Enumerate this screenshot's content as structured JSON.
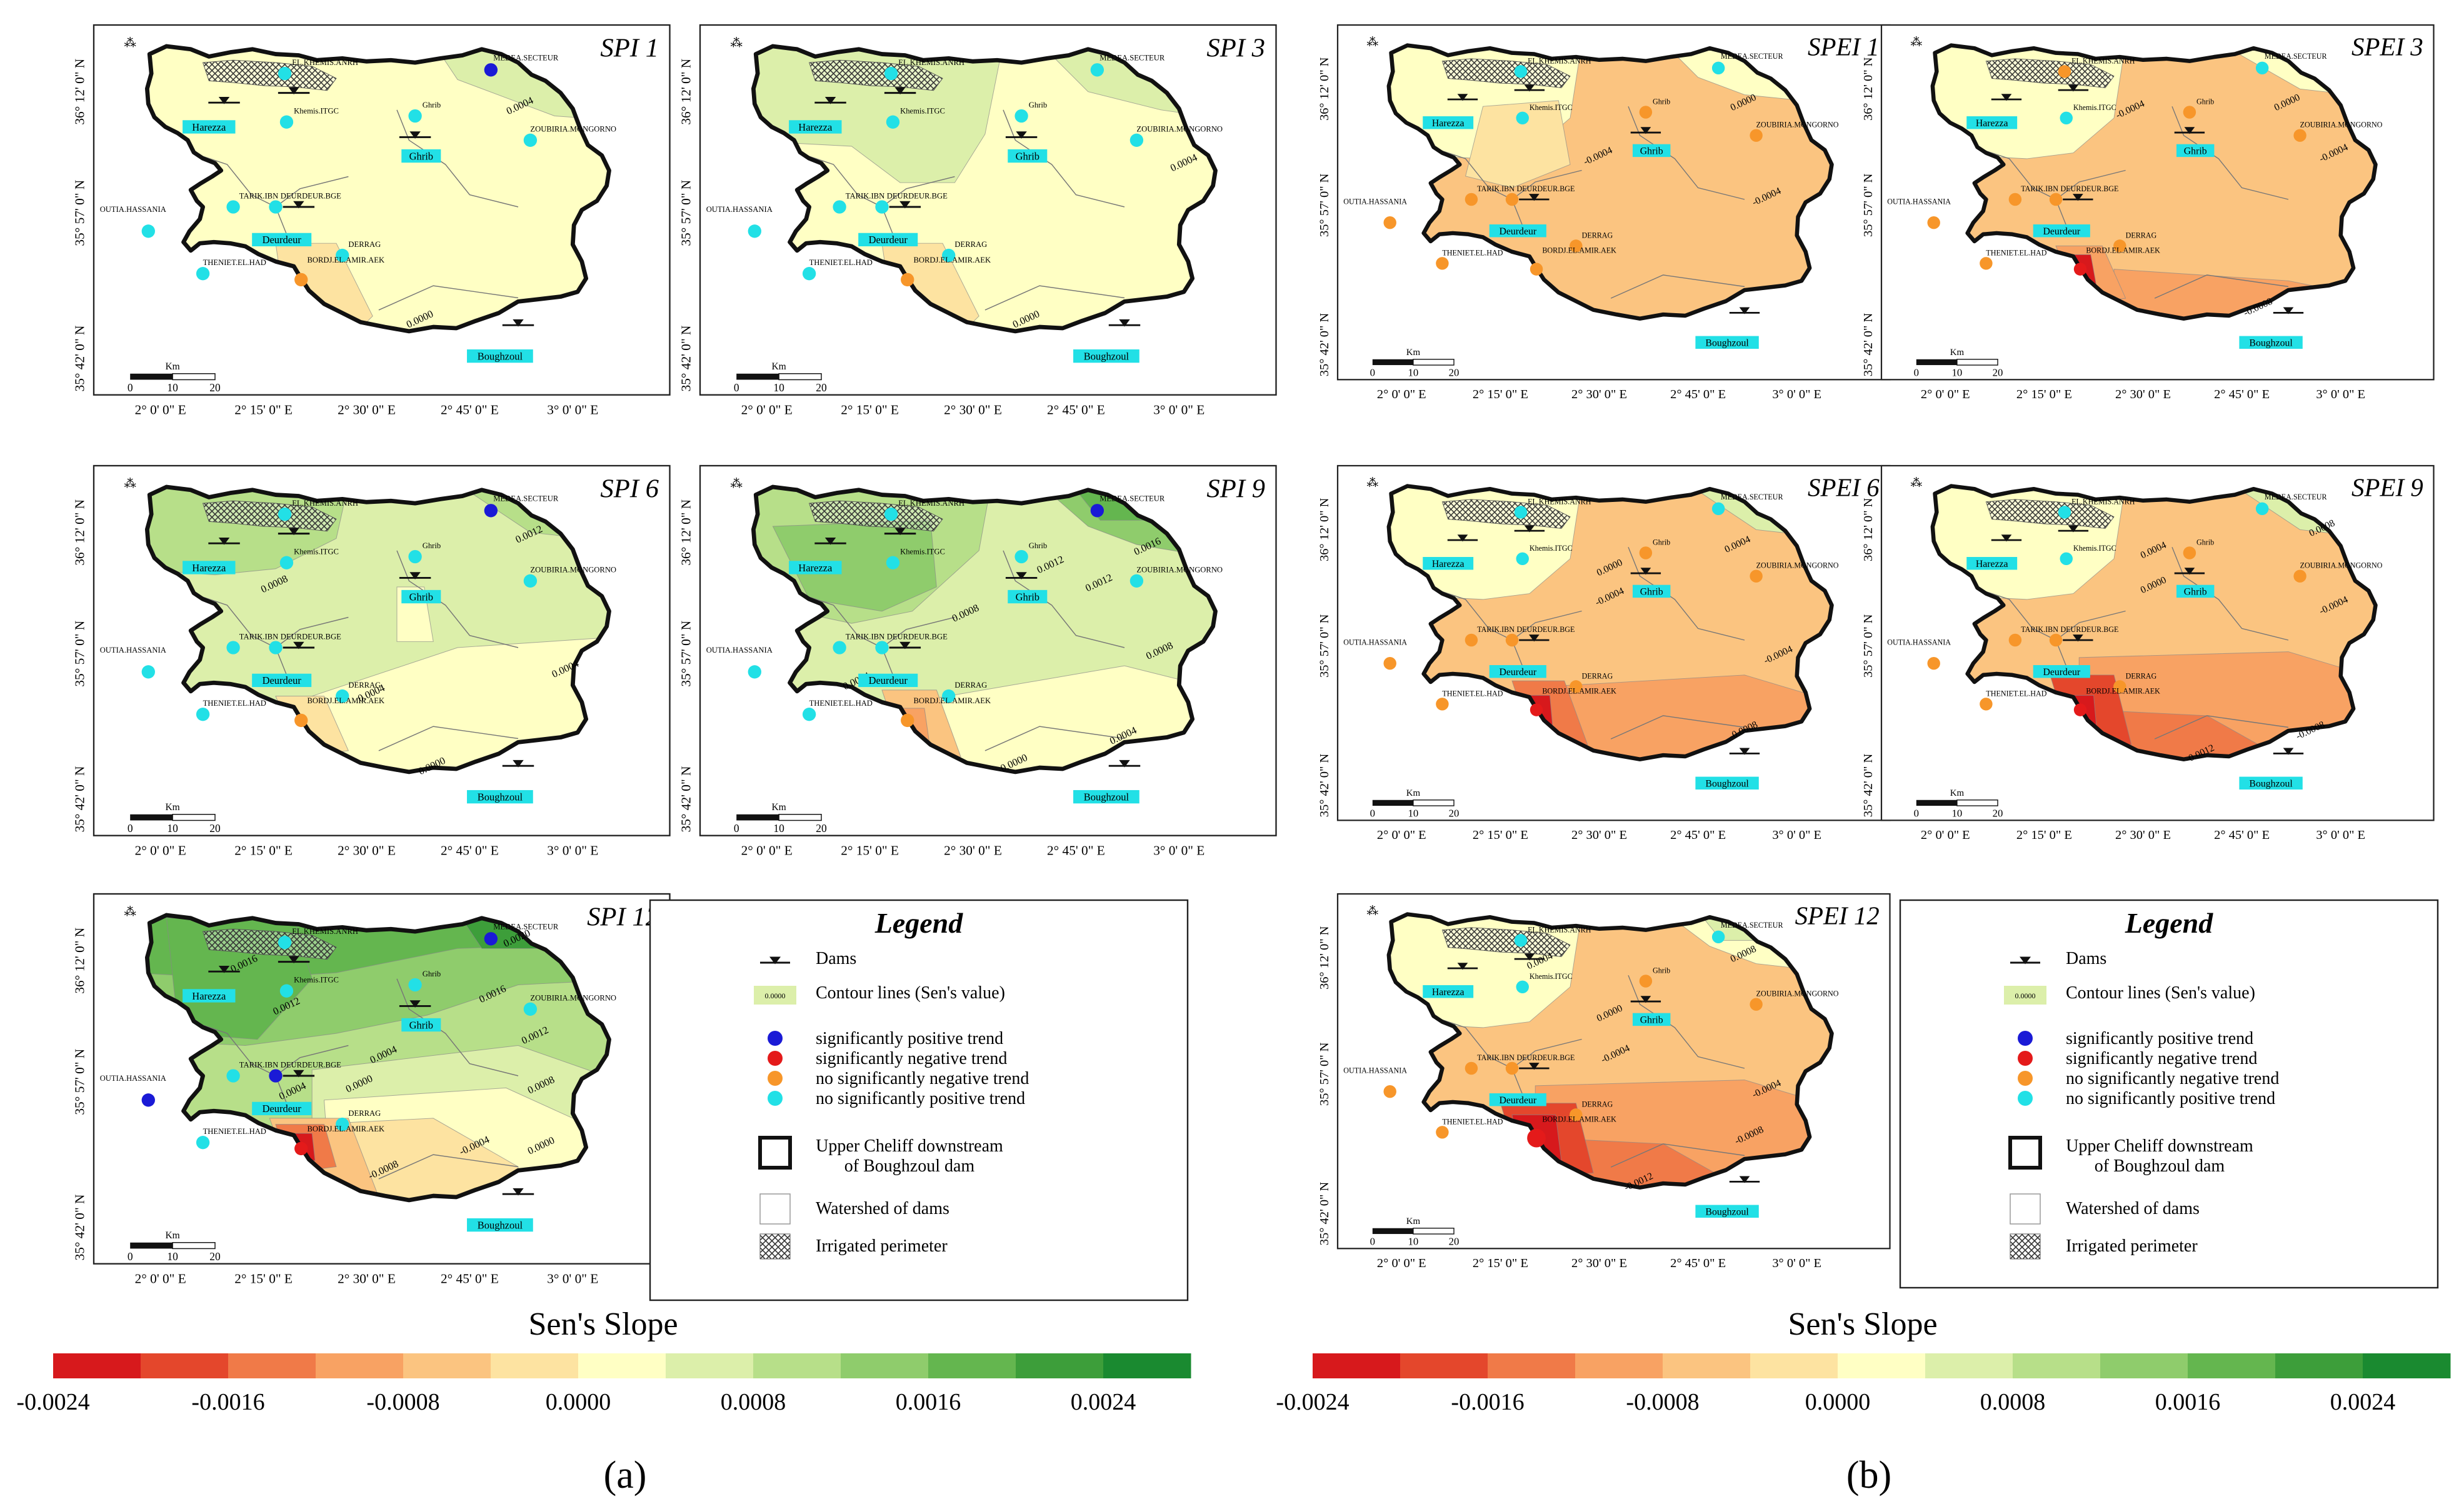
{
  "panel_a": {
    "label": "a",
    "maps": [
      {
        "title": "SPI 1",
        "scheme": "spi1"
      },
      {
        "title": "SPI 3",
        "scheme": "spi3"
      },
      {
        "title": "SPI 6",
        "scheme": "spi6"
      },
      {
        "title": "SPI 9",
        "scheme": "spi9"
      },
      {
        "title": "SPI 12",
        "scheme": "spi12"
      }
    ]
  },
  "panel_b": {
    "label": "b",
    "maps": [
      {
        "title": "SPEI 1",
        "scheme": "spei1"
      },
      {
        "title": "SPEI 3",
        "scheme": "spei3"
      },
      {
        "title": "SPEI 6",
        "scheme": "spei6"
      },
      {
        "title": "SPEI 9",
        "scheme": "spei9"
      },
      {
        "title": "SPEI 12",
        "scheme": "spei12"
      }
    ]
  },
  "map_common": {
    "north_symbol": "⁂",
    "lat_labels": [
      "36° 12' 0\" N",
      "35° 57' 0\" N",
      "35° 42' 0\" N"
    ],
    "lon_labels": [
      "2° 0' 0\" E",
      "2° 15' 0\" E",
      "2° 30' 0\" E",
      "2° 45' 0\" E",
      "3° 0' 0\" E"
    ],
    "scale_unit": "Km",
    "scale_ticks": [
      "0",
      "10",
      "20"
    ],
    "dams": [
      "Harezza",
      "Ghrib",
      "Deurdeur",
      "Boughzoul"
    ],
    "stations": [
      "EL.KHEMIS.ANRH",
      "MEDEA.SECTEUR",
      "Khemis.ITGC",
      "Ghrib",
      "ZOUBIRIA.MONGORNO",
      "TARIK.IBN",
      "DEURDEUR.BGE",
      "OUTIA.HASSANIA",
      "DERRAG",
      "THENIET.EL.HAD",
      "BORDJ.EL.AMIR.AEK"
    ]
  },
  "contour_labels": {
    "spi1": [
      "0.0004",
      "0.0000"
    ],
    "spi3": [
      "0.0004",
      "0.0000"
    ],
    "spi6": [
      "0.0012",
      "0.0008",
      "0.0004",
      "0.0004",
      "0.0000"
    ],
    "spi9": [
      "0.0012",
      "0.0016",
      "0.0012",
      "0.0008",
      "0.0008",
      "0.0004",
      "0.0004",
      "0.0000"
    ],
    "spi12": [
      "0.0016",
      "0.0012",
      "0.0020",
      "0.0016",
      "0.0012",
      "0.0008",
      "0.0004",
      "0.0000",
      "0.0004",
      "-0.0008",
      "-0.0004",
      "0.0000"
    ],
    "spei1": [
      "0.0000",
      "-0.0004",
      "-0.0004"
    ],
    "spei3": [
      "0.0000",
      "-0.0004",
      "-0.0004",
      "-0.0008"
    ],
    "spei6": [
      "0.0004",
      "0.0000",
      "-0.0004",
      "-0.0004",
      "-0.0008"
    ],
    "spei9": [
      "0.0008",
      "0.0004",
      "0.0000",
      "-0.0004",
      "-0.0008",
      "-0.0012"
    ],
    "spei12": [
      "0.0008",
      "0.0004",
      "0.0000",
      "-0.0004",
      "-0.0004",
      "-0.0008",
      "-0.0012"
    ]
  },
  "legend": {
    "title": "Legend",
    "items": [
      {
        "label": "Dams"
      },
      {
        "label": "Contour lines (Sen's value)",
        "sample": "0.0000"
      },
      {
        "label": "significantly positive trend",
        "color": "#1a1ad6"
      },
      {
        "label": "significantly negative trend",
        "color": "#e41a1a"
      },
      {
        "label": "no significantly negative trend",
        "color": "#f7962a"
      },
      {
        "label": "no significantly positive trend",
        "color": "#22e0e6"
      },
      {
        "label": "Upper Cheliff downstream\nof Boughzoul dam"
      },
      {
        "label": "Watershed of dams"
      },
      {
        "label": "Irrigated perimeter"
      }
    ]
  },
  "colorbar": {
    "title": "Sen's Slope",
    "colors": [
      "#d7191c",
      "#e4472c",
      "#f07a48",
      "#f8a263",
      "#fbc480",
      "#fde3a1",
      "#ffffc4",
      "#dcefaa",
      "#b7df89",
      "#8fcc6c",
      "#64b64f",
      "#3d9e3a",
      "#1a8a30"
    ],
    "ticks": [
      "-0.0024",
      "-0.0016",
      "-0.0008",
      "0.0000",
      "0.0008",
      "0.0016",
      "0.0024"
    ]
  },
  "colors": {
    "spi_base": "#ffffc4",
    "spei_base": "#fbc480",
    "dam_label_bg": "#22e0e6"
  }
}
